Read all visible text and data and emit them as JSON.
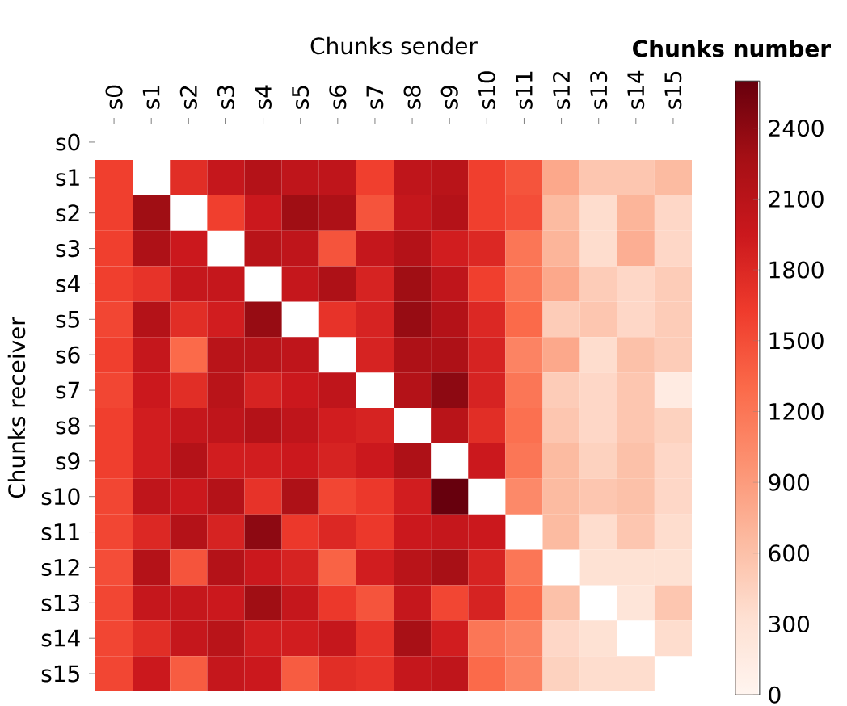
{
  "chart_data": {
    "type": "heatmap",
    "xlabel": "Chunks sender",
    "ylabel": "Chunks receiver",
    "clabel": "Chunks number",
    "categories": [
      "s0",
      "s1",
      "s2",
      "s3",
      "s4",
      "s5",
      "s6",
      "s7",
      "s8",
      "s9",
      "s10",
      "s11",
      "s12",
      "s13",
      "s14",
      "s15"
    ],
    "y_categories": [
      "s0",
      "s1",
      "s2",
      "s3",
      "s4",
      "s5",
      "s6",
      "s7",
      "s8",
      "s9",
      "s10",
      "s11",
      "s12",
      "s13",
      "s14",
      "s15"
    ],
    "cells": [
      [
        null,
        null,
        null,
        null,
        null,
        null,
        null,
        null,
        null,
        null,
        null,
        null,
        null,
        null,
        null,
        null
      ],
      [
        1600,
        null,
        1750,
        2000,
        2150,
        2050,
        2050,
        1600,
        2050,
        2100,
        1600,
        1450,
        800,
        550,
        550,
        650
      ],
      [
        1600,
        2300,
        null,
        1600,
        1950,
        2300,
        2200,
        1450,
        2000,
        2150,
        1600,
        1500,
        650,
        350,
        700,
        400
      ],
      [
        1600,
        2200,
        1950,
        null,
        2100,
        2050,
        1450,
        2000,
        2150,
        1900,
        1800,
        1200,
        700,
        350,
        750,
        400
      ],
      [
        1600,
        1700,
        2000,
        2000,
        null,
        2000,
        2200,
        1850,
        2300,
        2050,
        1600,
        1200,
        800,
        500,
        400,
        500
      ],
      [
        1550,
        2150,
        1750,
        1900,
        2350,
        null,
        1700,
        1850,
        2350,
        2150,
        1800,
        1300,
        500,
        550,
        400,
        500
      ],
      [
        1600,
        2000,
        1300,
        2100,
        2100,
        2050,
        null,
        1850,
        2200,
        2200,
        1850,
        1100,
        800,
        350,
        600,
        500
      ],
      [
        1550,
        1950,
        1750,
        2100,
        1850,
        1950,
        2050,
        null,
        2150,
        2400,
        1850,
        1200,
        500,
        400,
        550,
        150
      ],
      [
        1600,
        1900,
        2000,
        2050,
        2150,
        2050,
        1900,
        1850,
        null,
        2100,
        1750,
        1250,
        550,
        400,
        550,
        450
      ],
      [
        1600,
        1900,
        2150,
        1900,
        1900,
        1950,
        1850,
        1950,
        2200,
        null,
        1950,
        1200,
        650,
        450,
        600,
        400
      ],
      [
        1550,
        2050,
        1950,
        2150,
        1700,
        2200,
        1550,
        1650,
        1900,
        2600,
        null,
        1050,
        650,
        550,
        600,
        400
      ],
      [
        1550,
        1800,
        2150,
        1850,
        2400,
        1650,
        1800,
        1650,
        1950,
        2000,
        1950,
        null,
        650,
        350,
        550,
        350
      ],
      [
        1500,
        2150,
        1450,
        2150,
        1950,
        1850,
        1350,
        1900,
        2100,
        2250,
        1850,
        1200,
        null,
        300,
        300,
        300
      ],
      [
        1550,
        2000,
        2000,
        1950,
        2300,
        2000,
        1650,
        1450,
        2000,
        1550,
        1850,
        1300,
        600,
        null,
        250,
        550
      ],
      [
        1550,
        1750,
        2000,
        2100,
        1900,
        1900,
        2000,
        1700,
        2250,
        1900,
        1200,
        1100,
        400,
        300,
        null,
        350
      ],
      [
        1550,
        1950,
        1400,
        2000,
        1950,
        1400,
        1750,
        1700,
        2000,
        2050,
        1300,
        1100,
        450,
        350,
        350,
        null
      ]
    ],
    "clim": [
      0,
      2600
    ],
    "cticks": [
      0,
      300,
      600,
      900,
      1200,
      1500,
      1800,
      2100,
      2400
    ]
  }
}
